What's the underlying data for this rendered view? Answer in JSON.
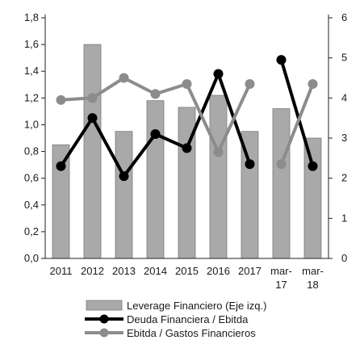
{
  "chart_data": {
    "type": "bar",
    "categories": [
      "2011",
      "2012",
      "2013",
      "2014",
      "2015",
      "2016",
      "2017",
      "mar-\n17",
      "mar-\n18"
    ],
    "series": [
      {
        "name": "Leverage Financiero (Eje izq.)",
        "type": "bar",
        "axis": "left",
        "color": "#a9a9a9",
        "values": [
          0.85,
          1.6,
          0.95,
          1.18,
          1.13,
          1.22,
          0.95,
          1.12,
          0.9
        ]
      },
      {
        "name": "Deuda Financiera / Ebitda",
        "type": "line",
        "axis": "right",
        "color": "#000000",
        "segments": [
          [
            0,
            6
          ],
          [
            7,
            8
          ]
        ],
        "values": [
          2.3,
          3.5,
          2.05,
          3.1,
          2.75,
          4.6,
          2.35,
          4.95,
          2.3
        ]
      },
      {
        "name": "Ebitda / Gastos Financieros",
        "type": "line",
        "axis": "right",
        "color": "#8c8c8c",
        "segments": [
          [
            0,
            6
          ],
          [
            7,
            8
          ]
        ],
        "values": [
          3.95,
          4.0,
          4.5,
          4.1,
          4.35,
          2.65,
          4.35,
          2.35,
          4.35
        ]
      }
    ],
    "yleft": {
      "min": 0,
      "max": 1.8,
      "ticks": [
        "0,0",
        "0,2",
        "0,4",
        "0,6",
        "0,8",
        "1,0",
        "1,2",
        "1,4",
        "1,6",
        "1,8"
      ]
    },
    "yright": {
      "min": 0,
      "max": 6,
      "ticks": [
        "0",
        "1",
        "2",
        "3",
        "4",
        "5",
        "6"
      ]
    },
    "legend_position": "bottom"
  }
}
